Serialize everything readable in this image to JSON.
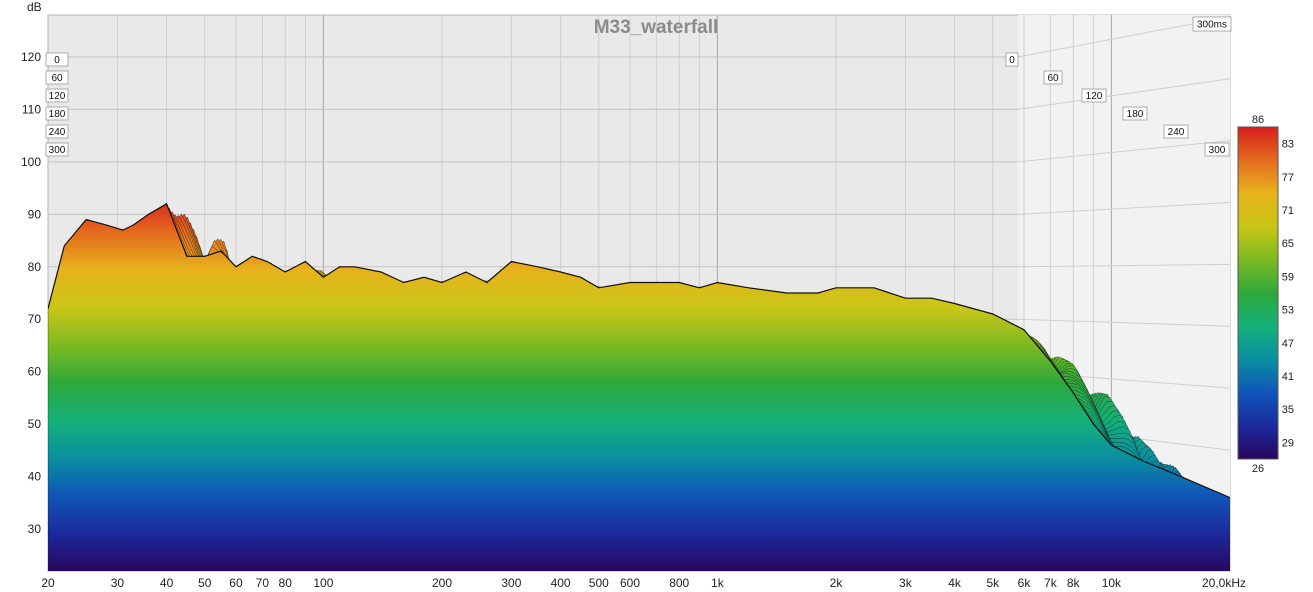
{
  "chart_data": {
    "type": "area",
    "title": "M33_waterfall",
    "ylabel": "dB",
    "xlabel": "",
    "x_scale": "log",
    "xlim": [
      20,
      20000
    ],
    "ylim": [
      22,
      128
    ],
    "y_ticks": [
      30,
      40,
      50,
      60,
      70,
      80,
      90,
      100,
      110,
      120
    ],
    "x_ticks": [
      {
        "v": 20,
        "label": "20"
      },
      {
        "v": 30,
        "label": "30"
      },
      {
        "v": 40,
        "label": "40"
      },
      {
        "v": 50,
        "label": "50"
      },
      {
        "v": 60,
        "label": "60"
      },
      {
        "v": 70,
        "label": "70"
      },
      {
        "v": 80,
        "label": "80"
      },
      {
        "v": 100,
        "label": "100"
      },
      {
        "v": 200,
        "label": "200"
      },
      {
        "v": 300,
        "label": "300"
      },
      {
        "v": 400,
        "label": "400"
      },
      {
        "v": 500,
        "label": "500"
      },
      {
        "v": 600,
        "label": "600"
      },
      {
        "v": 800,
        "label": "800"
      },
      {
        "v": 1000,
        "label": "1k"
      },
      {
        "v": 2000,
        "label": "2k"
      },
      {
        "v": 3000,
        "label": "3k"
      },
      {
        "v": 4000,
        "label": "4k"
      },
      {
        "v": 5000,
        "label": "5k"
      },
      {
        "v": 6000,
        "label": "6k"
      },
      {
        "v": 7000,
        "label": "7k"
      },
      {
        "v": 8000,
        "label": "8k"
      },
      {
        "v": 10000,
        "label": "10k"
      },
      {
        "v": 20000,
        "label": "20,0kHz"
      }
    ],
    "time_ticks": [
      "0",
      "60",
      "120",
      "180",
      "240",
      "300"
    ],
    "time_span_label": "300ms",
    "front_slice": {
      "name": "0 ms",
      "x": [
        20,
        22,
        25,
        28,
        31,
        33,
        36,
        40,
        45,
        50,
        55,
        60,
        66,
        72,
        80,
        90,
        100,
        110,
        120,
        140,
        160,
        180,
        200,
        230,
        260,
        300,
        350,
        400,
        450,
        500,
        600,
        700,
        800,
        900,
        1000,
        1200,
        1500,
        1800,
        2000,
        2500,
        3000,
        3500,
        4000,
        5000,
        6000,
        7000,
        8000,
        9000,
        10000,
        12000,
        15000,
        20000
      ],
      "y": [
        72,
        84,
        89,
        88,
        87,
        88,
        90,
        92,
        82,
        82,
        83,
        80,
        82,
        81,
        79,
        81,
        78,
        80,
        80,
        79,
        77,
        78,
        77,
        79,
        77,
        81,
        80,
        79,
        78,
        76,
        77,
        77,
        77,
        76,
        77,
        76,
        75,
        75,
        76,
        76,
        74,
        74,
        73,
        71,
        68,
        62,
        56,
        50,
        46,
        43,
        40,
        36
      ]
    },
    "colorbar": {
      "min_label": "26",
      "max_label": "86",
      "ticks": [
        "29",
        "35",
        "41",
        "47",
        "53",
        "59",
        "65",
        "71",
        "77",
        "83"
      ],
      "colors": [
        "#2a0660",
        "#1b2a9c",
        "#0f55b8",
        "#0a8fa0",
        "#15b07a",
        "#2ea83a",
        "#7cba22",
        "#c9c616",
        "#e7b21c",
        "#e46b1e",
        "#d61f1f"
      ]
    },
    "grid": true
  }
}
